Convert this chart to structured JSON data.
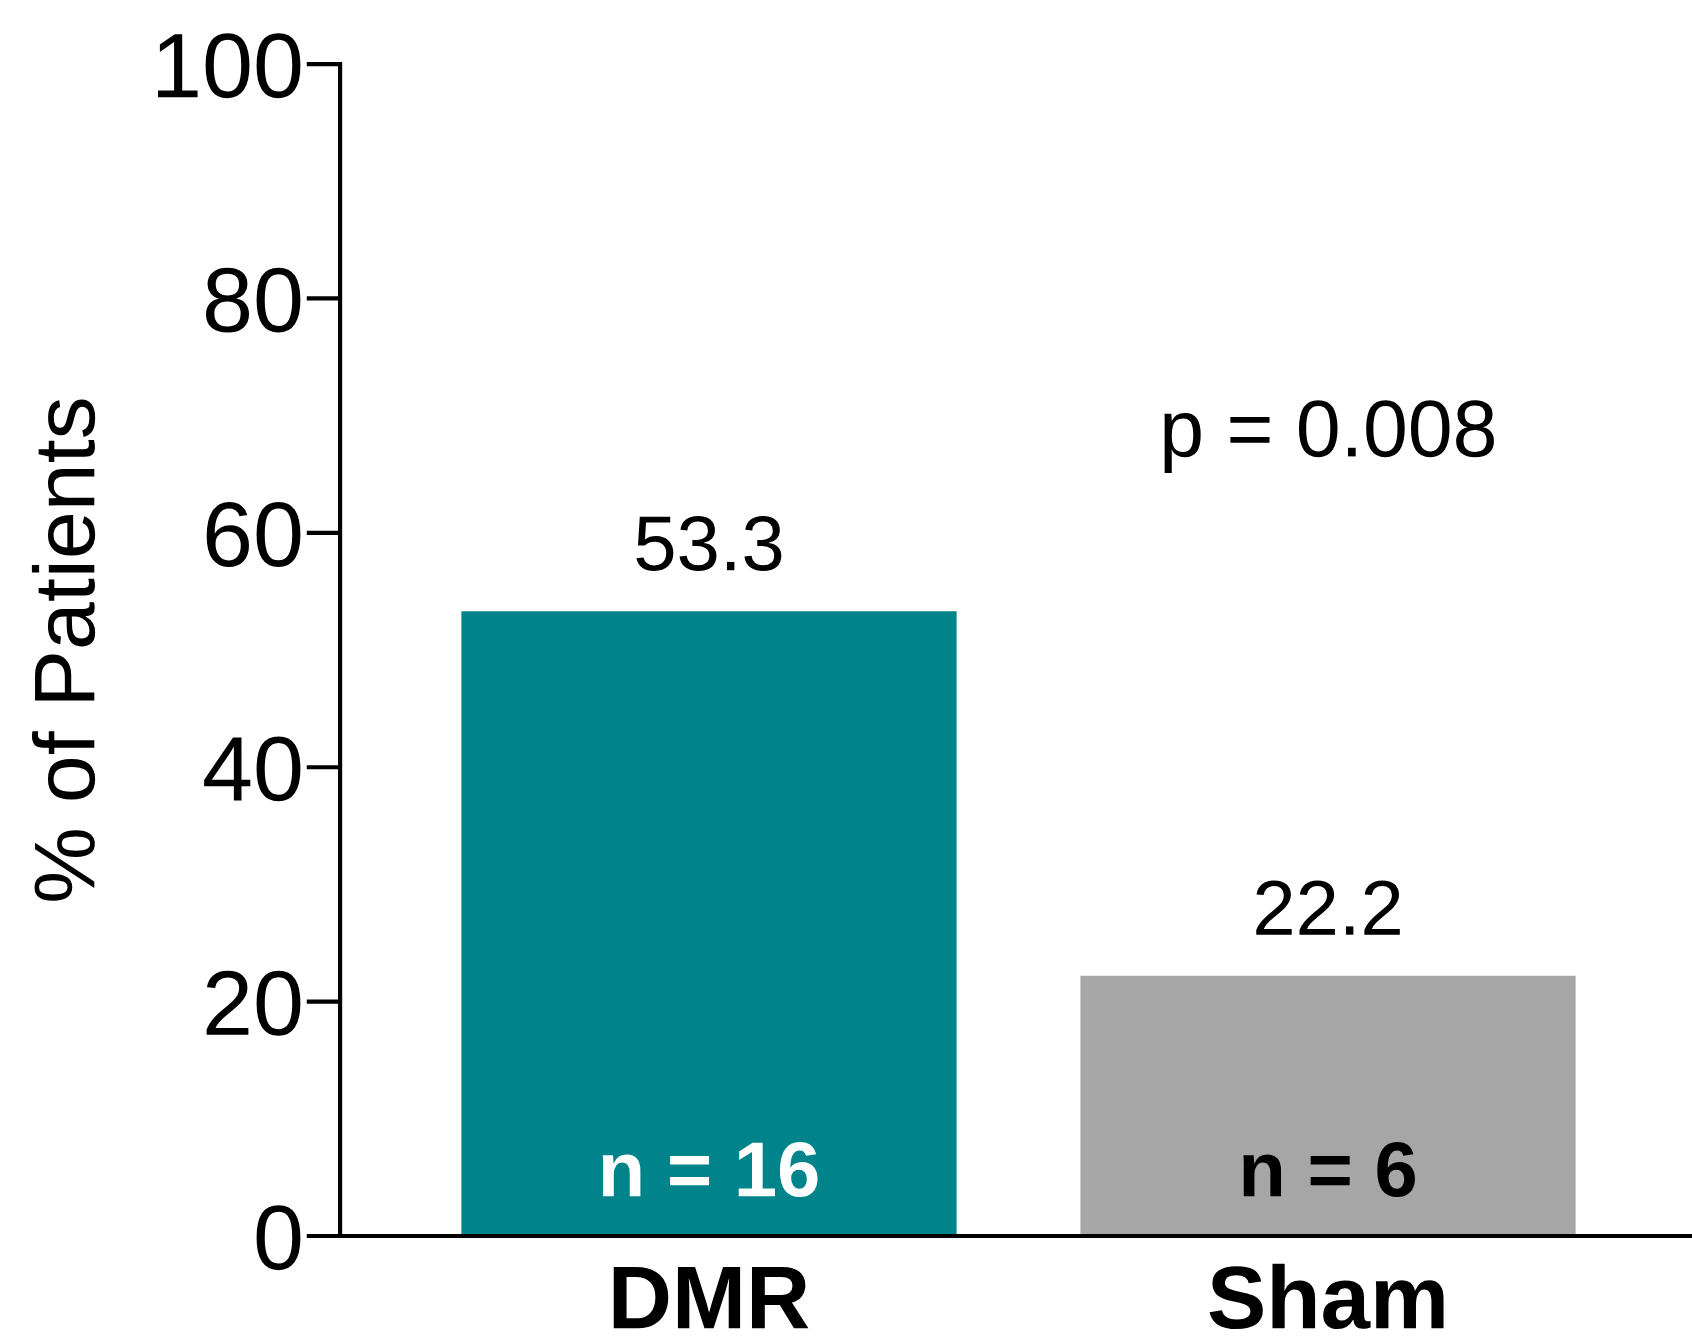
{
  "chart_data": {
    "type": "bar",
    "ylabel": "% of Patients",
    "categories": [
      "DMR",
      "Sham"
    ],
    "values": [
      53.3,
      22.2
    ],
    "colors": [
      "#00838a",
      "#a6a6a6"
    ],
    "ylim": [
      0,
      100
    ],
    "yticks": [
      0,
      20,
      40,
      60,
      80,
      100
    ],
    "data_labels": true,
    "grid": false,
    "legend": false,
    "annotations": [
      "p = 0.008",
      "n = 16",
      "n = 6"
    ]
  }
}
